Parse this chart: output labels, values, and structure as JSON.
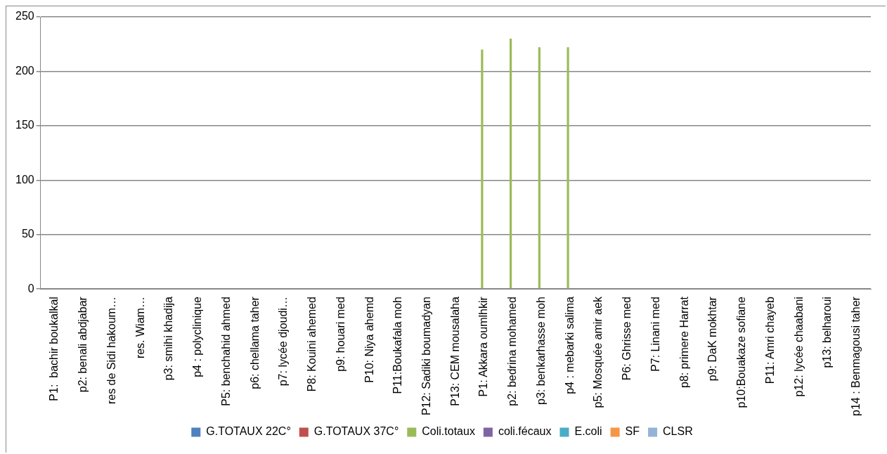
{
  "chart_data": {
    "type": "bar",
    "categories": [
      "P1:  bachir boukalkal",
      "p2: benali abdjabar",
      "res de Sidi hakoum…",
      "res. Wiam…",
      "p3: smihi khadija",
      "p4 : polyclinique",
      "P5: benchahid ahmed",
      "p6: chellama taher",
      "p7: lycée djoudi…",
      "P8: Kouini ahemed",
      "p9: houari med",
      "P10: Niya ahemd",
      "P11:Boukafala moh",
      "P12: Sadiki boumadyan",
      "P13: CEM mousalaha",
      "P1: Akkara oumlhkir",
      "p2: bedrina mohamed",
      "p3: benkarhasse moh",
      "p4 : mebarki salima",
      "p5: Mosquée amir aek",
      "P6: Ghrisse med",
      "P7: Linani med",
      "p8: primere Harrat",
      "p9: DaK mokhtar",
      "p10:Bouakaze sofiane",
      "P11: Amri chayeb",
      "p12: lycée chaabani",
      "p13: belharoui",
      "p14 : Benmagousi taher"
    ],
    "series": [
      {
        "name": "G.TOTAUX 22C°",
        "color": "#4f81bd",
        "values": [
          0,
          0,
          0,
          0,
          0,
          0,
          0,
          0,
          0,
          0,
          0,
          0,
          0,
          0,
          0,
          0,
          0,
          0,
          0,
          0,
          0,
          0,
          0,
          0,
          0,
          0,
          0,
          0,
          0
        ]
      },
      {
        "name": "G.TOTAUX 37C°",
        "color": "#c0504d",
        "values": [
          0,
          0,
          0,
          0,
          0,
          0,
          0,
          0,
          0,
          0,
          0,
          0,
          0,
          0,
          0,
          0,
          0,
          0,
          0,
          0,
          0,
          0,
          0,
          0,
          0,
          0,
          0,
          0,
          0
        ]
      },
      {
        "name": "Coli.totaux",
        "color": "#9bbb59",
        "values": [
          0,
          0,
          0,
          0,
          0,
          0,
          0,
          0,
          0,
          0,
          0,
          0,
          0,
          0,
          0,
          220,
          230,
          222,
          222,
          0,
          0,
          0,
          0,
          0,
          0,
          0,
          0,
          0,
          0
        ]
      },
      {
        "name": "coli.fécaux",
        "color": "#8064a2",
        "values": [
          0,
          0,
          0,
          0,
          0,
          0,
          0,
          0,
          0,
          0,
          0,
          0,
          0,
          0,
          0,
          0,
          0,
          0,
          0,
          0,
          0,
          0,
          0,
          0,
          0,
          0,
          0,
          0,
          0
        ]
      },
      {
        "name": "E.coli",
        "color": "#4bacc6",
        "values": [
          0,
          0,
          0,
          0,
          0,
          0,
          0,
          0,
          0,
          0,
          0,
          0,
          0,
          0,
          0,
          0,
          0,
          0,
          0,
          0,
          0,
          0,
          0,
          0,
          0,
          0,
          0,
          0,
          0
        ]
      },
      {
        "name": "SF",
        "color": "#f79646",
        "values": [
          0,
          0,
          0,
          0,
          0,
          0,
          0,
          0,
          0,
          0,
          0,
          0,
          0,
          0,
          0,
          0,
          0,
          0,
          0,
          0,
          0,
          0,
          0,
          0,
          0,
          0,
          0,
          0,
          0
        ]
      },
      {
        "name": "CLSR",
        "color": "#95b3d7",
        "values": [
          0,
          0,
          0,
          0,
          0,
          0,
          0,
          0,
          0,
          0,
          0,
          0,
          0,
          0,
          0,
          0,
          0,
          0,
          0,
          0,
          0,
          0,
          0,
          0,
          0,
          0,
          0,
          0,
          0
        ]
      }
    ],
    "ylim": [
      0,
      250
    ],
    "yticks": [
      0,
      50,
      100,
      150,
      200,
      250
    ],
    "grid": "y",
    "legend": "bottom"
  }
}
